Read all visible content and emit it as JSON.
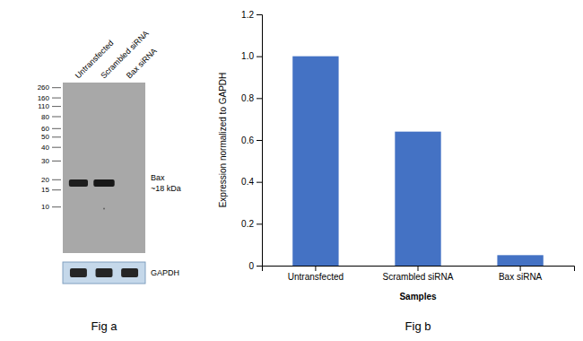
{
  "chart_data": [
    {
      "type": "blot",
      "title": "Fig a",
      "categories": [
        "Untransfected",
        "Scrambled siRNA",
        "Bax siRNA"
      ],
      "annotations": [
        "260",
        "160",
        "110",
        "80",
        "60",
        "50",
        "40",
        "30",
        "20",
        "15",
        "10",
        "Bax",
        "~18 kDa",
        "GAPDH"
      ]
    },
    {
      "type": "bar",
      "title": "Fig b",
      "categories": [
        "Untransfected",
        "Scrambled siRNA",
        "Bax siRNA"
      ],
      "values": [
        1.0,
        0.64,
        0.05
      ],
      "color": "#4472C4",
      "ylim": [
        0,
        1.2
      ],
      "yticks": [
        0,
        0.2,
        0.4,
        0.6,
        0.8,
        {
          "value": 1.0,
          "label": "1.0"
        },
        1.2
      ],
      "xlabel": "Samples",
      "ylabel": "Expression normalized to GAPDH"
    }
  ]
}
